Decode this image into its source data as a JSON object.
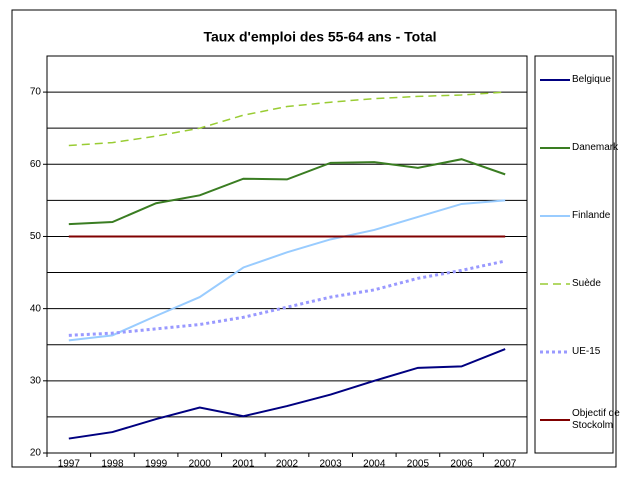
{
  "chart_data": {
    "type": "line",
    "title": "Taux d'emploi des 55-64 ans - Total",
    "categories": [
      "1997",
      "1998",
      "1999",
      "2000",
      "2001",
      "2002",
      "2003",
      "2004",
      "2005",
      "2006",
      "2007"
    ],
    "series": [
      {
        "name": "Belgique",
        "color": "#000080",
        "dash": "solid",
        "values": [
          22.0,
          22.9,
          24.7,
          26.3,
          25.1,
          26.5,
          28.1,
          30.0,
          31.8,
          32.0,
          34.4
        ]
      },
      {
        "name": "Danemark",
        "color": "#3a7d22",
        "dash": "solid",
        "values": [
          51.7,
          52.0,
          54.6,
          55.7,
          58.0,
          57.9,
          60.2,
          60.3,
          59.5,
          60.7,
          58.6
        ]
      },
      {
        "name": "Finlande",
        "color": "#99ccff",
        "dash": "solid",
        "values": [
          35.6,
          36.3,
          39.0,
          41.6,
          45.7,
          47.8,
          49.6,
          50.9,
          52.7,
          54.5,
          55.0
        ]
      },
      {
        "name": "Suède",
        "color": "#99cc33",
        "dash": "dashed",
        "values": [
          62.6,
          63.0,
          63.9,
          65.0,
          66.8,
          68.0,
          68.6,
          69.1,
          69.4,
          69.6,
          70.0
        ]
      },
      {
        "name": "UE-15",
        "color": "#9999ff",
        "dash": "dotted",
        "values": [
          36.3,
          36.6,
          37.2,
          37.8,
          38.8,
          40.2,
          41.6,
          42.6,
          44.2,
          45.3,
          46.6
        ]
      },
      {
        "name": "Objectif de Stockolm",
        "color": "#800000",
        "dash": "solid",
        "values": [
          50,
          50,
          50,
          50,
          50,
          50,
          50,
          50,
          50,
          50,
          50
        ]
      }
    ],
    "ylim": [
      20,
      75
    ],
    "yticks": [
      20,
      30,
      40,
      50,
      60,
      70
    ],
    "minor_yticks": [
      25,
      35,
      45,
      55,
      65,
      75
    ],
    "grid": true,
    "legend": "right"
  }
}
